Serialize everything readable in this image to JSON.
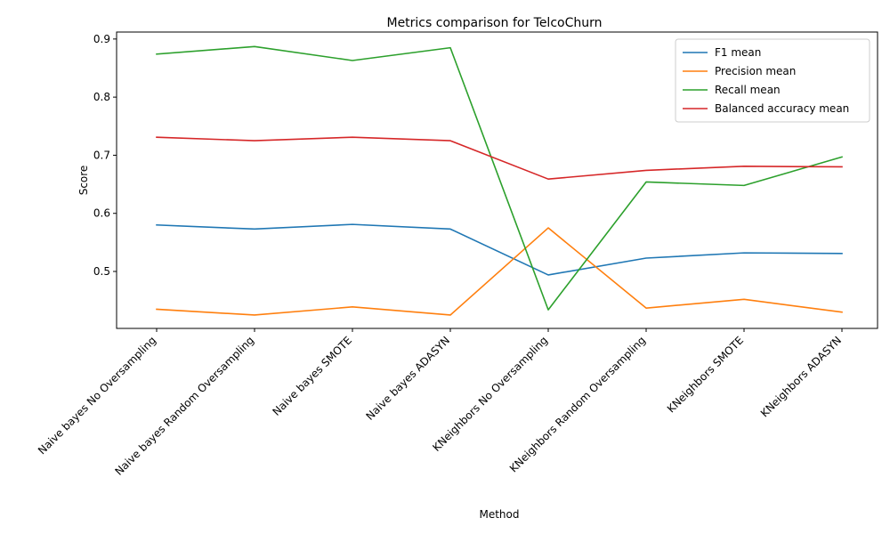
{
  "chart_data": {
    "type": "line",
    "title": "Metrics comparison for TelcoChurn",
    "xlabel": "Method",
    "ylabel": "Score",
    "categories": [
      "Naive bayes No Oversampling",
      "Naive bayes Random Oversampling",
      "Naive bayes SMOTE",
      "Naive bayes ADASYN",
      "KNeighbors No Oversampling",
      "KNeighbors Random Oversampling",
      "KNeighbors SMOTE",
      "KNeighbors ADASYN"
    ],
    "ylim": [
      0.402,
      0.912
    ],
    "yticks": [
      0.5,
      0.6,
      0.7,
      0.8,
      0.9
    ],
    "ytick_labels": [
      "0.5",
      "0.6",
      "0.7",
      "0.8",
      "0.9"
    ],
    "grid": false,
    "legend_position": "top-right",
    "series": [
      {
        "name": "F1 mean",
        "color": "#1f77b4",
        "values": [
          0.58,
          0.573,
          0.581,
          0.573,
          0.494,
          0.523,
          0.532,
          0.531
        ]
      },
      {
        "name": "Precision mean",
        "color": "#ff7f0e",
        "values": [
          0.435,
          0.425,
          0.439,
          0.425,
          0.575,
          0.437,
          0.452,
          0.43
        ]
      },
      {
        "name": "Recall mean",
        "color": "#2ca02c",
        "values": [
          0.874,
          0.887,
          0.863,
          0.885,
          0.434,
          0.654,
          0.648,
          0.697
        ]
      },
      {
        "name": "Balanced accuracy mean",
        "color": "#d62728",
        "values": [
          0.731,
          0.725,
          0.731,
          0.725,
          0.659,
          0.674,
          0.681,
          0.68
        ]
      }
    ]
  }
}
